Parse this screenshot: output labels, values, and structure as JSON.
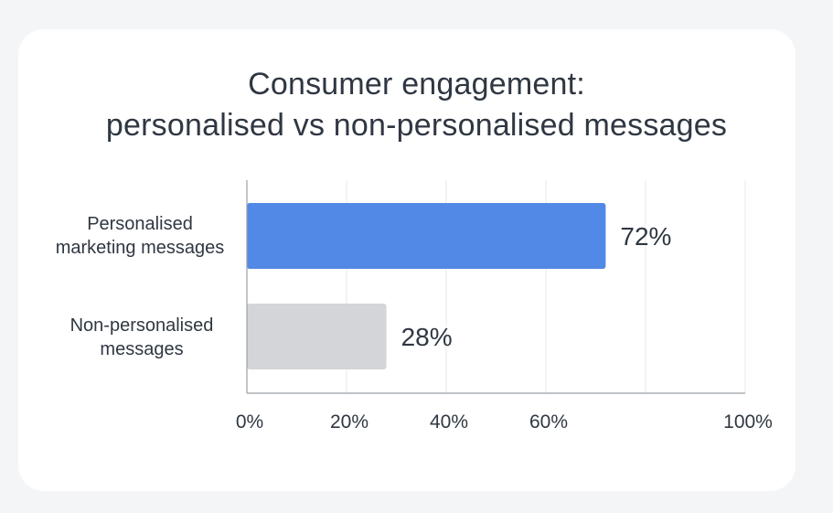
{
  "chart_data": {
    "type": "bar",
    "orientation": "horizontal",
    "title_lines": [
      "Consumer engagement:",
      "personalised vs non-personalised messages"
    ],
    "categories": [
      {
        "label_lines": [
          "Personalised",
          "marketing messages"
        ],
        "value": 72,
        "value_label": "72%",
        "color": "#5289e6"
      },
      {
        "label_lines": [
          "Non-personalised",
          "messages"
        ],
        "value": 28,
        "value_label": "28%",
        "color": "#d3d5d8"
      }
    ],
    "x_ticks": [
      {
        "value": 0,
        "label": "0%"
      },
      {
        "value": 20,
        "label": "20%"
      },
      {
        "value": 40,
        "label": "40%"
      },
      {
        "value": 60,
        "label": "60%"
      },
      {
        "value": 100,
        "label": "100%"
      }
    ],
    "xlim": [
      0,
      100
    ],
    "grid": true,
    "legend": "none",
    "colors": {
      "text": "#2f3742",
      "grid": "#e6e8eb",
      "axis": "#9aa0a6",
      "card": "#ffffff",
      "background": "#f4f5f7"
    }
  }
}
